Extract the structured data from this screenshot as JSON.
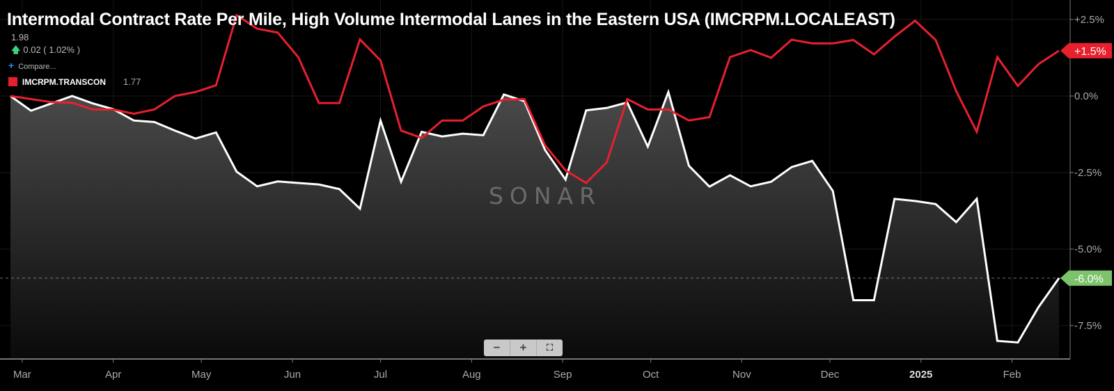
{
  "title": "Intermodal Contract Rate Per Mile, High Volume Intermodal Lanes in the Eastern USA (IMCRPM.LOCALEAST)",
  "legend": {
    "price": "1.98",
    "change": "0.02 ( 1.02% )",
    "change_direction_icon": "arrow-up",
    "compare_label": "Compare...",
    "series_name": "IMCRPM.TRANSCON",
    "series_value": "1.77"
  },
  "zoom_controls": {
    "minus": "−",
    "plus": "+",
    "fullscreen": "⛶"
  },
  "watermark": "SONAR",
  "chart_data": {
    "type": "line",
    "title": "Intermodal Contract Rate Per Mile, High Volume Intermodal Lanes in the Eastern USA (IMCRPM.LOCALEAST)",
    "x_tick_labels": [
      "Mar",
      "Apr",
      "May",
      "Jun",
      "Jul",
      "Aug",
      "Sep",
      "Oct",
      "Nov",
      "Dec",
      "2025",
      "Feb"
    ],
    "x_tick_dates": [
      "2024-03-01",
      "2024-04-01",
      "2024-05-01",
      "2024-06-01",
      "2024-07-01",
      "2024-08-01",
      "2024-09-01",
      "2024-10-01",
      "2024-11-01",
      "2024-12-01",
      "2025-01-01",
      "2025-02-01"
    ],
    "y_tick_labels": [
      "+2.5%",
      "0.0%",
      "-2.5%",
      "-5.0%",
      "-7.5%"
    ],
    "y_ticks": [
      2.5,
      0,
      -2.5,
      -5,
      -7.5
    ],
    "ylim": [
      -8.6,
      3.1
    ],
    "y_unit": "%",
    "grid": true,
    "x": [
      "2024-02-26",
      "2024-03-04",
      "2024-03-11",
      "2024-03-18",
      "2024-03-25",
      "2024-04-01",
      "2024-04-08",
      "2024-04-15",
      "2024-04-22",
      "2024-04-29",
      "2024-05-06",
      "2024-05-13",
      "2024-05-20",
      "2024-05-27",
      "2024-06-03",
      "2024-06-10",
      "2024-06-17",
      "2024-06-24",
      "2024-07-01",
      "2024-07-08",
      "2024-07-15",
      "2024-07-22",
      "2024-07-29",
      "2024-08-05",
      "2024-08-12",
      "2024-08-19",
      "2024-08-26",
      "2024-09-02",
      "2024-09-09",
      "2024-09-16",
      "2024-09-23",
      "2024-09-30",
      "2024-10-07",
      "2024-10-14",
      "2024-10-21",
      "2024-10-28",
      "2024-11-04",
      "2024-11-11",
      "2024-11-18",
      "2024-11-25",
      "2024-12-02",
      "2024-12-09",
      "2024-12-16",
      "2024-12-23",
      "2024-12-30",
      "2025-01-06",
      "2025-01-13",
      "2025-01-20",
      "2025-01-27",
      "2025-02-03",
      "2025-02-10",
      "2025-02-17"
    ],
    "series": [
      {
        "name": "IMCRPM.LOCALEAST",
        "color": "#ffffff",
        "area_fill": true,
        "last_value_label": "-6.0%",
        "label_color": "#7dc36b",
        "values": [
          0,
          -0.48,
          -0.24,
          0,
          -0.24,
          -0.43,
          -0.8,
          -0.85,
          -1.13,
          -1.39,
          -1.19,
          -2.47,
          -2.95,
          -2.79,
          -2.84,
          -2.89,
          -3.04,
          -3.68,
          -0.8,
          -2.8,
          -1.17,
          -1.32,
          -1.23,
          -1.28,
          0.05,
          -0.17,
          -1.76,
          -2.73,
          -0.47,
          -0.39,
          -0.21,
          -1.65,
          0.13,
          -2.28,
          -2.96,
          -2.59,
          -2.95,
          -2.8,
          -2.32,
          -2.12,
          -3.1,
          -6.67,
          -6.67,
          -3.36,
          -3.43,
          -3.53,
          -4.12,
          -3.36,
          -8.0,
          -8.05,
          -6.9,
          -5.95
        ]
      },
      {
        "name": "IMCRPM.TRANSCON",
        "color": "#e8202e",
        "area_fill": false,
        "last_value_label": "+1.5%",
        "label_color": "#e8202e",
        "values": [
          0,
          -0.1,
          -0.2,
          -0.22,
          -0.44,
          -0.44,
          -0.58,
          -0.44,
          0.0,
          0.13,
          0.35,
          2.64,
          2.2,
          2.07,
          1.27,
          -0.23,
          -0.23,
          1.85,
          1.16,
          -1.13,
          -1.37,
          -0.8,
          -0.8,
          -0.34,
          -0.12,
          -0.1,
          -1.61,
          -2.43,
          -2.84,
          -2.17,
          -0.1,
          -0.44,
          -0.44,
          -0.8,
          -0.69,
          1.27,
          1.5,
          1.25,
          1.84,
          1.72,
          1.72,
          1.83,
          1.36,
          1.94,
          2.46,
          1.83,
          0.16,
          -1.17,
          1.27,
          0.33,
          1.04,
          1.48
        ]
      }
    ]
  }
}
